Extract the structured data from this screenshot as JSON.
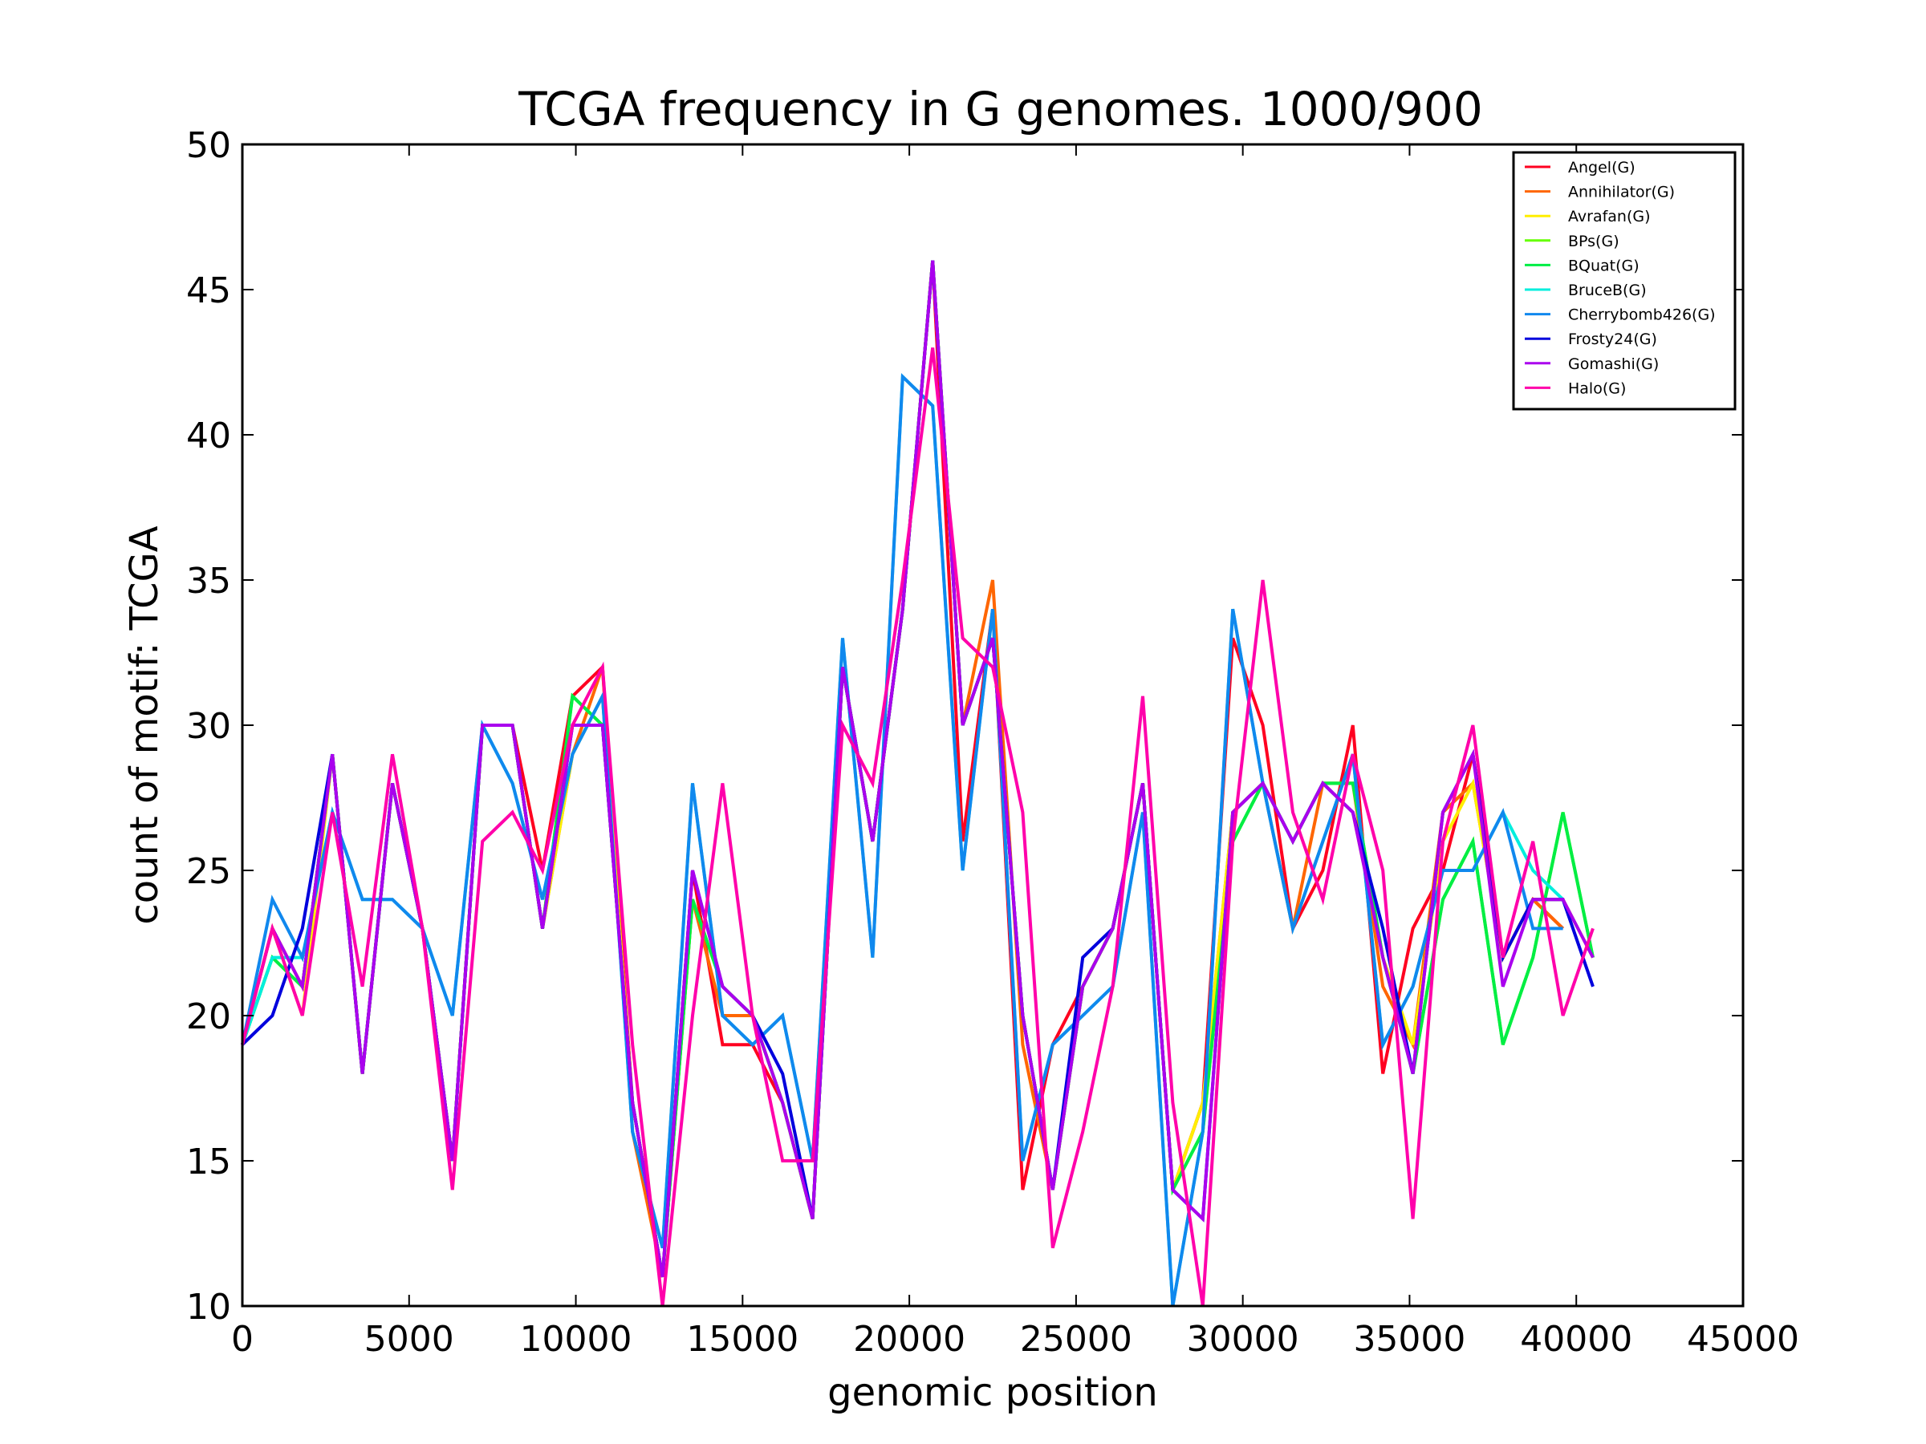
{
  "chart_data": {
    "type": "line",
    "title": "TCGA frequency in G genomes. 1000/900",
    "xlabel": "genomic position",
    "ylabel": "count of motif: TCGA",
    "xlim": [
      0,
      45000
    ],
    "ylim": [
      10,
      50
    ],
    "xticks": [
      0,
      5000,
      10000,
      15000,
      20000,
      25000,
      30000,
      35000,
      40000,
      45000
    ],
    "yticks": [
      10,
      15,
      20,
      25,
      30,
      35,
      40,
      45,
      50
    ],
    "grid": false,
    "legend_position": "top-right",
    "x": [
      0,
      900,
      1800,
      2700,
      3600,
      4500,
      5400,
      6300,
      7200,
      8100,
      9000,
      9900,
      10800,
      11700,
      12600,
      13500,
      14400,
      15300,
      16200,
      17100,
      18000,
      18900,
      19800,
      20700,
      21600,
      22500,
      23400,
      24300,
      25200,
      26100,
      27000,
      27900,
      28800,
      29700,
      30600,
      31500,
      32400,
      33300,
      34200,
      35100,
      36000,
      36900,
      37800,
      38700,
      39600,
      40500
    ],
    "series": [
      {
        "name": "Angel(G)",
        "color": "#ff0020",
        "values": [
          19,
          23,
          21,
          29,
          18,
          28,
          23,
          15,
          30,
          30,
          25,
          31,
          32,
          17,
          11,
          25,
          19,
          19,
          17,
          13,
          32,
          26,
          34,
          46,
          26,
          34,
          14,
          19,
          21,
          23,
          28,
          14,
          17,
          33,
          30,
          23,
          25,
          30,
          18,
          23,
          25,
          29,
          22,
          24,
          23,
          null
        ]
      },
      {
        "name": "Annihilator(G)",
        "color": "#ff6600",
        "values": [
          19,
          23,
          21,
          29,
          18,
          28,
          23,
          15,
          30,
          30,
          23,
          29,
          32,
          16,
          11,
          24,
          20,
          20,
          17,
          13,
          32,
          26,
          34,
          46,
          30,
          35,
          19,
          14,
          21,
          23,
          28,
          14,
          17,
          27,
          28,
          23,
          28,
          28,
          21,
          19,
          27,
          28,
          22,
          24,
          23,
          null
        ]
      },
      {
        "name": "Avrafan(G)",
        "color": "#ffee00",
        "values": [
          19,
          23,
          20,
          29,
          18,
          28,
          23,
          15,
          30,
          30,
          23,
          29,
          31,
          17,
          11,
          24,
          21,
          20,
          17,
          13,
          32,
          26,
          34,
          46,
          30,
          33,
          20,
          14,
          21,
          23,
          28,
          14,
          17,
          27,
          28,
          26,
          28,
          27,
          22,
          19,
          26,
          28,
          22,
          24,
          24,
          22
        ]
      },
      {
        "name": "BPs(G)",
        "color": "#66ff00",
        "values": [
          19,
          22,
          21,
          29,
          18,
          28,
          23,
          15,
          30,
          30,
          23,
          31,
          30,
          17,
          11,
          24,
          21,
          20,
          17,
          13,
          32,
          26,
          34,
          46,
          30,
          33,
          20,
          14,
          21,
          23,
          28,
          14,
          16,
          26,
          28,
          26,
          28,
          28,
          22,
          18,
          24,
          26,
          19,
          22,
          27,
          22
        ]
      },
      {
        "name": "BQuat(G)",
        "color": "#00ee44",
        "values": [
          19,
          22,
          21,
          29,
          18,
          28,
          23,
          15,
          30,
          30,
          23,
          31,
          30,
          17,
          11,
          24,
          21,
          20,
          17,
          13,
          32,
          26,
          34,
          46,
          30,
          33,
          20,
          14,
          21,
          23,
          28,
          14,
          16,
          26,
          28,
          26,
          28,
          28,
          22,
          18,
          24,
          26,
          19,
          22,
          27,
          22
        ]
      },
      {
        "name": "BruceB(G)",
        "color": "#00eedd",
        "values": [
          19,
          22,
          22,
          27,
          24,
          24,
          23,
          20,
          30,
          28,
          24,
          29,
          31,
          16,
          12,
          28,
          20,
          19,
          20,
          15,
          33,
          22,
          42,
          41,
          25,
          34,
          15,
          19,
          20,
          21,
          27,
          10,
          16,
          34,
          28,
          23,
          26,
          29,
          19,
          21,
          25,
          25,
          27,
          25,
          24,
          null
        ]
      },
      {
        "name": "Cherrybomb426(G)",
        "color": "#1088ee",
        "values": [
          19,
          24,
          22,
          27,
          24,
          24,
          23,
          20,
          30,
          28,
          24,
          29,
          31,
          16,
          12,
          28,
          20,
          19,
          20,
          15,
          33,
          22,
          42,
          41,
          25,
          34,
          15,
          19,
          20,
          21,
          27,
          10,
          16,
          34,
          28,
          23,
          26,
          29,
          19,
          21,
          25,
          25,
          27,
          23,
          23,
          null
        ]
      },
      {
        "name": "Frosty24(G)",
        "color": "#0000dd",
        "values": [
          19,
          20,
          23,
          29,
          18,
          28,
          23,
          15,
          30,
          30,
          23,
          30,
          30,
          17,
          11,
          25,
          21,
          20,
          18,
          13,
          32,
          26,
          34,
          46,
          30,
          33,
          20,
          14,
          22,
          23,
          28,
          14,
          13,
          27,
          28,
          26,
          28,
          27,
          23,
          18,
          27,
          29,
          22,
          24,
          24,
          21
        ]
      },
      {
        "name": "Gomashi(G)",
        "color": "#aa00ee",
        "values": [
          19,
          23,
          21,
          29,
          18,
          28,
          23,
          15,
          30,
          30,
          23,
          30,
          30,
          17,
          11,
          25,
          21,
          20,
          17,
          13,
          32,
          26,
          34,
          46,
          30,
          33,
          20,
          14,
          21,
          23,
          28,
          14,
          13,
          27,
          28,
          26,
          28,
          27,
          22,
          18,
          27,
          29,
          21,
          24,
          24,
          22
        ]
      },
      {
        "name": "Halo(G)",
        "color": "#ff00aa",
        "values": [
          19,
          23,
          20,
          27,
          21,
          29,
          23,
          14,
          26,
          27,
          25,
          30,
          32,
          19,
          10,
          20,
          28,
          20,
          15,
          15,
          30,
          28,
          35,
          43,
          33,
          32,
          27,
          12,
          16,
          21,
          31,
          17,
          10,
          26,
          35,
          27,
          24,
          29,
          25,
          13,
          26,
          30,
          22,
          26,
          20,
          23
        ]
      }
    ]
  }
}
